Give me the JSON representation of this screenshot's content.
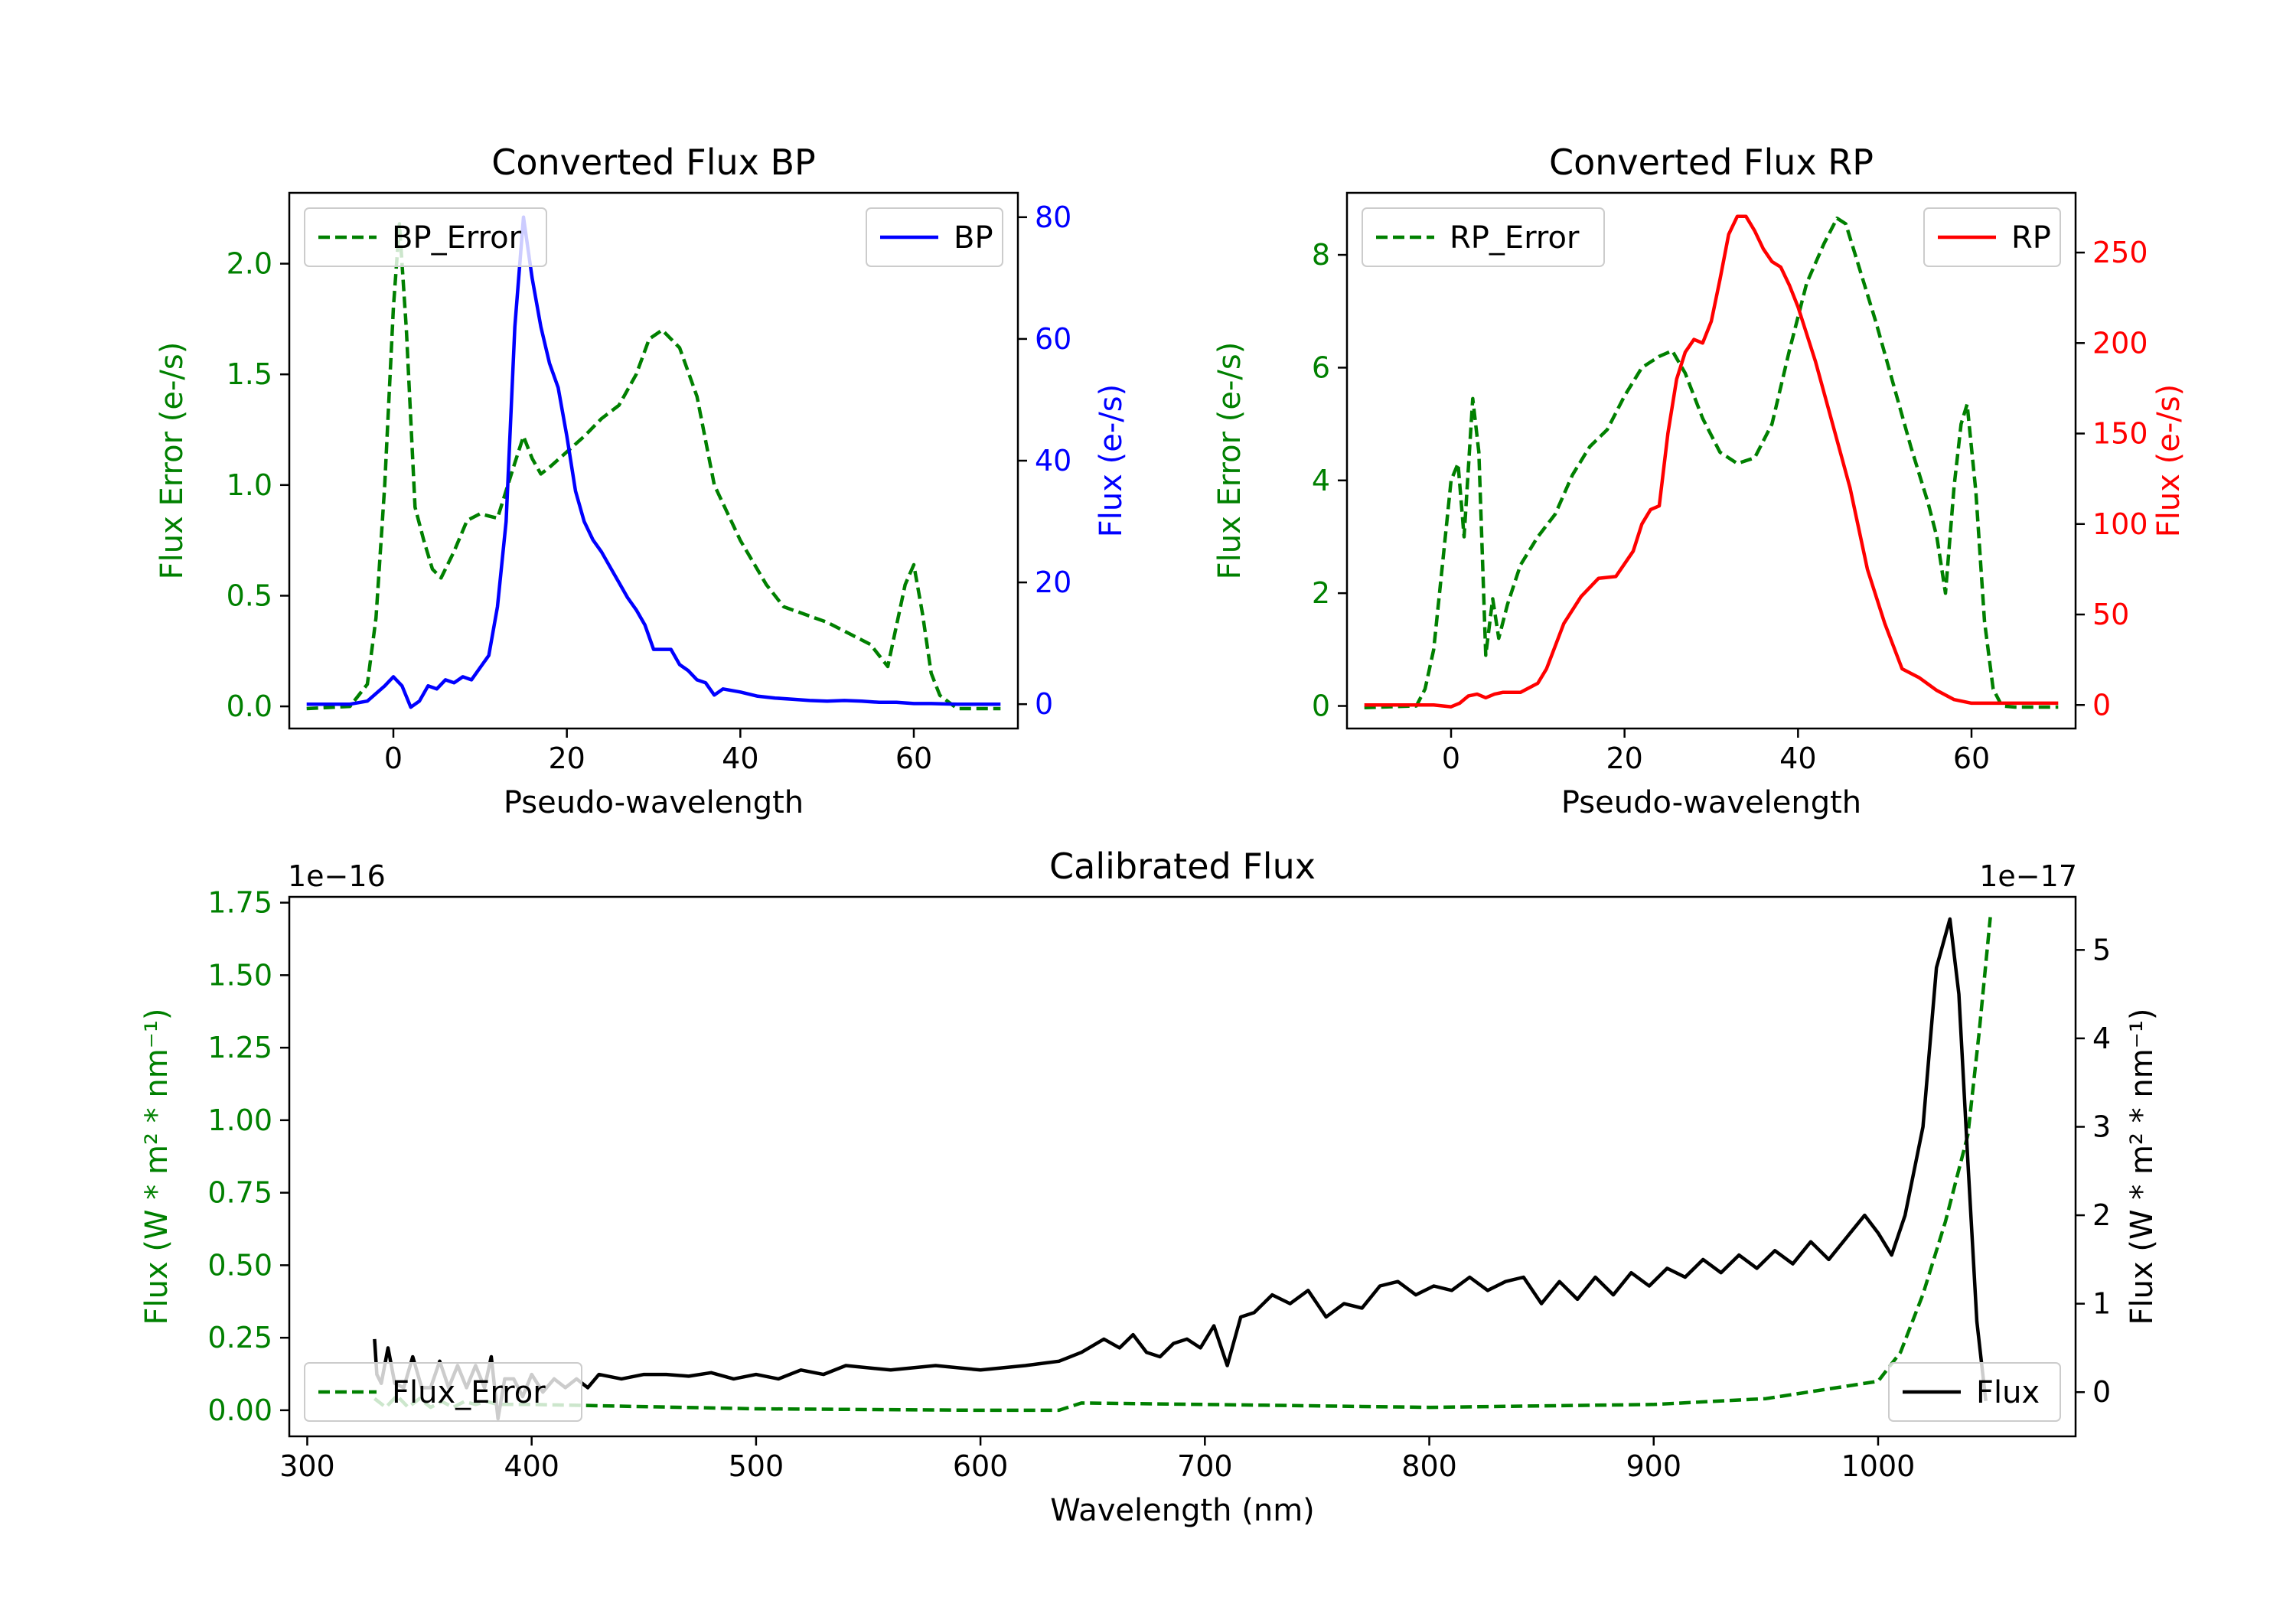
{
  "colors": {
    "error": "#008000",
    "bp": "#0000ff",
    "rp": "#ff0000",
    "flux": "#000000",
    "axis": "#000000"
  },
  "chart_data": [
    {
      "type": "line",
      "title": "Converted Flux BP",
      "xlabel": "Pseudo-wavelength",
      "ylabel_left": "Flux Error (e-/s)",
      "ylabel_right": "Flux (e-/s)",
      "xlim": [
        -12,
        72
      ],
      "ylim_left": [
        -0.1,
        2.32
      ],
      "ylim_right": [
        -4,
        84
      ],
      "xticks": [
        0,
        20,
        40,
        60
      ],
      "yticks_left": [
        0.0,
        0.5,
        1.0,
        1.5,
        2.0
      ],
      "yticks_left_labels": [
        "0.0",
        "0.5",
        "1.0",
        "1.5",
        "2.0"
      ],
      "yticks_right": [
        0,
        20,
        40,
        60,
        80
      ],
      "series": [
        {
          "name": "BP_Error",
          "axis": "left",
          "style": "dashed",
          "color": "#008000",
          "x": [
            -10,
            -5,
            -3,
            -2,
            -1,
            0,
            0.7,
            1.5,
            2.5,
            3.5,
            4.5,
            5.5,
            7,
            8.5,
            10,
            12,
            14,
            15,
            16,
            17,
            18,
            20,
            22,
            24,
            26,
            28,
            29.5,
            31,
            33,
            35,
            37,
            40,
            43,
            45,
            50,
            55,
            57,
            59,
            60,
            61,
            62,
            63,
            65,
            70
          ],
          "y": [
            -0.01,
            0.0,
            0.1,
            0.4,
            1.0,
            1.8,
            2.18,
            1.7,
            0.9,
            0.75,
            0.62,
            0.58,
            0.7,
            0.84,
            0.87,
            0.85,
            1.1,
            1.22,
            1.12,
            1.05,
            1.08,
            1.15,
            1.22,
            1.3,
            1.36,
            1.5,
            1.66,
            1.7,
            1.62,
            1.4,
            1.0,
            0.75,
            0.55,
            0.45,
            0.38,
            0.28,
            0.18,
            0.55,
            0.64,
            0.42,
            0.15,
            0.05,
            -0.01,
            -0.01
          ]
        },
        {
          "name": "BP",
          "axis": "right",
          "style": "solid",
          "color": "#0000ff",
          "x": [
            -10,
            -5,
            -3,
            -1,
            0,
            1,
            2,
            3,
            4,
            5,
            6,
            7,
            8,
            9,
            10,
            11,
            12,
            13,
            14,
            15,
            16,
            17,
            18,
            19,
            20,
            21,
            22,
            23,
            24,
            25,
            26,
            27,
            28,
            29,
            30,
            31,
            32,
            33,
            34,
            35,
            36,
            37,
            38,
            40,
            42,
            44,
            46,
            48,
            50,
            52,
            54,
            56,
            58,
            60,
            62,
            65,
            70
          ],
          "y": [
            0,
            0,
            0.5,
            3,
            4.5,
            3,
            -0.5,
            0.5,
            3,
            2.5,
            4,
            3.5,
            4.5,
            4,
            6,
            8,
            16,
            30,
            62,
            80,
            70,
            62,
            56,
            52,
            44,
            35,
            30,
            27,
            25,
            22.5,
            20,
            17.5,
            15.5,
            13,
            9,
            9,
            9,
            6.5,
            5.5,
            4,
            3.5,
            1.5,
            2.5,
            2,
            1.3,
            1,
            0.8,
            0.6,
            0.5,
            0.6,
            0.5,
            0.3,
            0.3,
            0.1,
            0.1,
            0,
            0
          ]
        }
      ],
      "legend_left": "upper left",
      "legend_right": "upper right"
    },
    {
      "type": "line",
      "title": "Converted Flux RP",
      "xlabel": "Pseudo-wavelength",
      "ylabel_left": "Flux Error (e-/s)",
      "ylabel_right": "Flux (e-/s)",
      "xlim": [
        -12,
        72
      ],
      "ylim_left": [
        -0.4,
        9.1
      ],
      "ylim_right": [
        -13,
        283
      ],
      "xticks": [
        0,
        20,
        40,
        60
      ],
      "yticks_left": [
        0,
        2,
        4,
        6,
        8
      ],
      "yticks_left_labels": [
        "0",
        "2",
        "4",
        "6",
        "8"
      ],
      "yticks_right": [
        0,
        50,
        100,
        150,
        200,
        250
      ],
      "series": [
        {
          "name": "RP_Error",
          "axis": "left",
          "style": "dashed",
          "color": "#008000",
          "x": [
            -10,
            -4,
            -3,
            -2,
            -1,
            0,
            0.8,
            1.5,
            2.5,
            3.2,
            4,
            4.8,
            5.5,
            6.5,
            8,
            10,
            12,
            14,
            16,
            18,
            20,
            22,
            24,
            25.5,
            27,
            29,
            31,
            33,
            35,
            37,
            39,
            41,
            43,
            44.5,
            45.5,
            47,
            49,
            51,
            53,
            55,
            56,
            57,
            58,
            58.8,
            59.5,
            60.5,
            61.5,
            62.5,
            63.5,
            65,
            70
          ],
          "y": [
            -0.03,
            0.0,
            0.3,
            1.0,
            2.5,
            4.0,
            4.3,
            3.0,
            5.45,
            4.5,
            0.9,
            1.9,
            1.2,
            1.8,
            2.5,
            3.0,
            3.4,
            4.1,
            4.6,
            4.9,
            5.5,
            6.0,
            6.2,
            6.3,
            5.9,
            5.1,
            4.5,
            4.3,
            4.4,
            5.0,
            6.3,
            7.5,
            8.2,
            8.65,
            8.55,
            7.8,
            6.8,
            5.7,
            4.6,
            3.6,
            3.0,
            2.0,
            3.9,
            5.0,
            5.35,
            3.8,
            1.5,
            0.3,
            0.0,
            -0.02,
            -0.02
          ]
        },
        {
          "name": "RP",
          "axis": "right",
          "style": "solid",
          "color": "#ff0000",
          "x": [
            -10,
            -5,
            -2,
            0,
            1,
            2,
            3,
            4,
            5,
            6,
            7,
            8,
            10,
            11,
            13,
            15,
            17,
            19,
            21,
            22,
            23,
            24,
            25,
            26,
            27,
            28,
            29,
            30,
            31,
            32,
            33,
            34,
            35,
            36,
            37,
            38,
            39,
            40,
            42,
            44,
            46,
            48,
            50,
            52,
            54,
            56,
            58,
            60,
            65,
            70
          ],
          "y": [
            0,
            0,
            0,
            -1,
            1,
            5,
            6,
            4,
            6,
            7,
            7,
            7,
            12,
            20,
            45,
            60,
            70,
            71,
            85,
            100,
            108,
            110,
            150,
            180,
            195,
            202,
            200,
            212,
            235,
            260,
            270,
            270,
            262,
            252,
            245,
            242,
            232,
            220,
            190,
            155,
            120,
            75,
            45,
            20,
            15,
            8,
            3,
            1,
            1,
            1
          ]
        }
      ],
      "legend_left": "upper left",
      "legend_right": "upper right"
    },
    {
      "type": "line",
      "title": "Calibrated Flux",
      "xlabel": "Wavelength (nm)",
      "ylabel_left": "Flux (W * m² * nm⁻¹)",
      "ylabel_right": "Flux (W * m² * nm⁻¹)",
      "xlim": [
        292,
        1088
      ],
      "ylim_left": [
        -0.09,
        1.77
      ],
      "ylim_right": [
        -0.5,
        5.6
      ],
      "offset_left": "1e−16",
      "offset_right": "1e−17",
      "xticks": [
        300,
        400,
        500,
        600,
        700,
        800,
        900,
        1000
      ],
      "yticks_left": [
        0.0,
        0.25,
        0.5,
        0.75,
        1.0,
        1.25,
        1.5,
        1.75
      ],
      "yticks_left_labels": [
        "0.00",
        "0.25",
        "0.50",
        "0.75",
        "1.00",
        "1.25",
        "1.50",
        "1.75"
      ],
      "yticks_right": [
        0,
        1,
        2,
        3,
        4,
        5
      ],
      "series": [
        {
          "name": "Flux_Error",
          "axis": "left",
          "style": "dashed",
          "color": "#008000",
          "x": [
            330,
            335,
            340,
            345,
            350,
            355,
            360,
            365,
            370,
            375,
            380,
            385,
            390,
            400,
            500,
            600,
            635,
            645,
            700,
            800,
            900,
            950,
            1000,
            1010,
            1020,
            1030,
            1040,
            1045,
            1050
          ],
          "y": [
            0.04,
            0.01,
            0.05,
            0.01,
            0.04,
            0.01,
            0.03,
            0.01,
            0.03,
            0.02,
            0.03,
            0.02,
            0.02,
            0.02,
            0.005,
            0.0,
            0.0,
            0.025,
            0.02,
            0.01,
            0.02,
            0.04,
            0.1,
            0.2,
            0.4,
            0.65,
            0.95,
            1.3,
            1.7
          ]
        },
        {
          "name": "Flux",
          "axis": "right",
          "style": "solid",
          "color": "#000000",
          "x": [
            330,
            331,
            333,
            336,
            339,
            343,
            347,
            351,
            355,
            359,
            363,
            367,
            371,
            375,
            379,
            382,
            385,
            388,
            392,
            396,
            400,
            405,
            410,
            415,
            420,
            425,
            430,
            440,
            450,
            460,
            470,
            480,
            490,
            500,
            510,
            520,
            530,
            540,
            560,
            580,
            600,
            620,
            635,
            645,
            655,
            662,
            668,
            674,
            680,
            686,
            692,
            698,
            704,
            710,
            716,
            722,
            730,
            738,
            746,
            754,
            762,
            770,
            778,
            786,
            794,
            802,
            810,
            818,
            826,
            834,
            842,
            850,
            858,
            866,
            874,
            882,
            890,
            898,
            906,
            914,
            922,
            930,
            938,
            946,
            954,
            962,
            970,
            978,
            986,
            994,
            1000,
            1006,
            1012,
            1020,
            1026,
            1032,
            1036,
            1040,
            1044,
            1048
          ],
          "y": [
            0.6,
            0.2,
            0.1,
            0.5,
            0.1,
            0.05,
            0.4,
            0.05,
            0.05,
            0.35,
            0.05,
            0.3,
            0.05,
            0.3,
            0.05,
            0.4,
            -0.3,
            0.15,
            0.15,
            -0.05,
            0.2,
            0.0,
            0.15,
            0.05,
            0.15,
            0.05,
            0.2,
            0.15,
            0.2,
            0.2,
            0.18,
            0.22,
            0.15,
            0.2,
            0.15,
            0.25,
            0.2,
            0.3,
            0.25,
            0.3,
            0.25,
            0.3,
            0.35,
            0.45,
            0.6,
            0.5,
            0.65,
            0.45,
            0.4,
            0.55,
            0.6,
            0.5,
            0.75,
            0.3,
            0.85,
            0.9,
            1.1,
            1.0,
            1.15,
            0.85,
            1.0,
            0.95,
            1.2,
            1.25,
            1.1,
            1.2,
            1.15,
            1.3,
            1.15,
            1.25,
            1.3,
            1.0,
            1.25,
            1.05,
            1.3,
            1.1,
            1.35,
            1.2,
            1.4,
            1.3,
            1.5,
            1.35,
            1.55,
            1.4,
            1.6,
            1.45,
            1.7,
            1.5,
            1.75,
            2.0,
            1.8,
            1.55,
            2.0,
            3.0,
            4.8,
            5.35,
            4.5,
            2.6,
            0.8,
            -0.1
          ]
        }
      ],
      "legend_left": "lower left",
      "legend_right": "lower right"
    }
  ]
}
